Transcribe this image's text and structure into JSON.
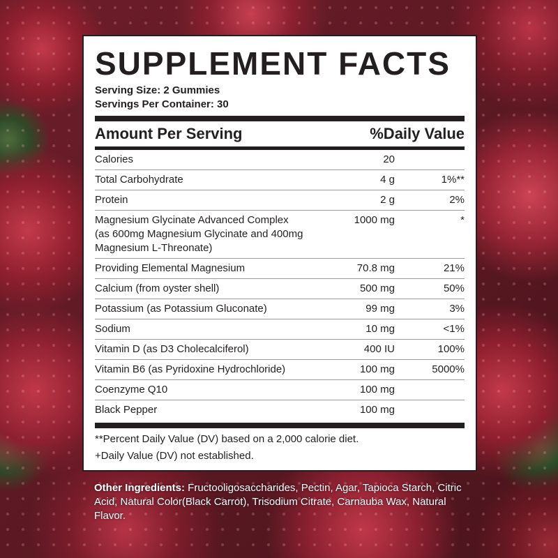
{
  "label": {
    "title": "SUPPLEMENT FACTS",
    "serving_size": "Serving Size: 2 Gummies",
    "servings_per_container": "Servings Per Container: 30",
    "header_amount": "Amount Per Serving",
    "header_dv": "%Daily Value",
    "rows": [
      {
        "name": "Calories",
        "amount": "20",
        "dv": ""
      },
      {
        "name": "Total Carbohydrate",
        "amount": "4 g",
        "dv": "1%**"
      },
      {
        "name": "Protein",
        "amount": "2 g",
        "dv": "2%"
      },
      {
        "name": "Magnesium Glycinate Advanced Complex\n(as 600mg Magnesium Glycinate and 400mg\nMagnesium L-Threonate)",
        "amount": "1000 mg",
        "dv": "*"
      },
      {
        "name": "Providing Elemental Magnesium",
        "amount": "70.8 mg",
        "dv": "21%"
      },
      {
        "name": "Calcium (from oyster shell)",
        "amount": "500 mg",
        "dv": "50%"
      },
      {
        "name": "Potassium (as Potassium Gluconate)",
        "amount": "99 mg",
        "dv": "3%"
      },
      {
        "name": "Sodium",
        "amount": "10 mg",
        "dv": "<1%"
      },
      {
        "name": "Vitamin D (as D3 Cholecalciferol)",
        "amount": "400 IU",
        "dv": "100%"
      },
      {
        "name": "Vitamin B6 (as Pyridoxine Hydrochloride)",
        "amount": "100 mg",
        "dv": "5000%"
      },
      {
        "name": "Coenzyme Q10",
        "amount": "100 mg",
        "dv": ""
      },
      {
        "name": "Black Pepper",
        "amount": "100 mg",
        "dv": ""
      }
    ],
    "footnote_dv": "**Percent Daily Value (DV) based on a 2,000 calorie diet.",
    "footnote_na": "+Daily Value (DV) not established."
  },
  "other_ingredients": {
    "label": "Other Ingredients:",
    "text": " Fructooligosaccharides, Pectin, Agar, Tapioca Starch, Citric Acid, Natural Color(Black Carrot), Trisodium Citrate, Carnauba Wax, Natural Flavor."
  }
}
